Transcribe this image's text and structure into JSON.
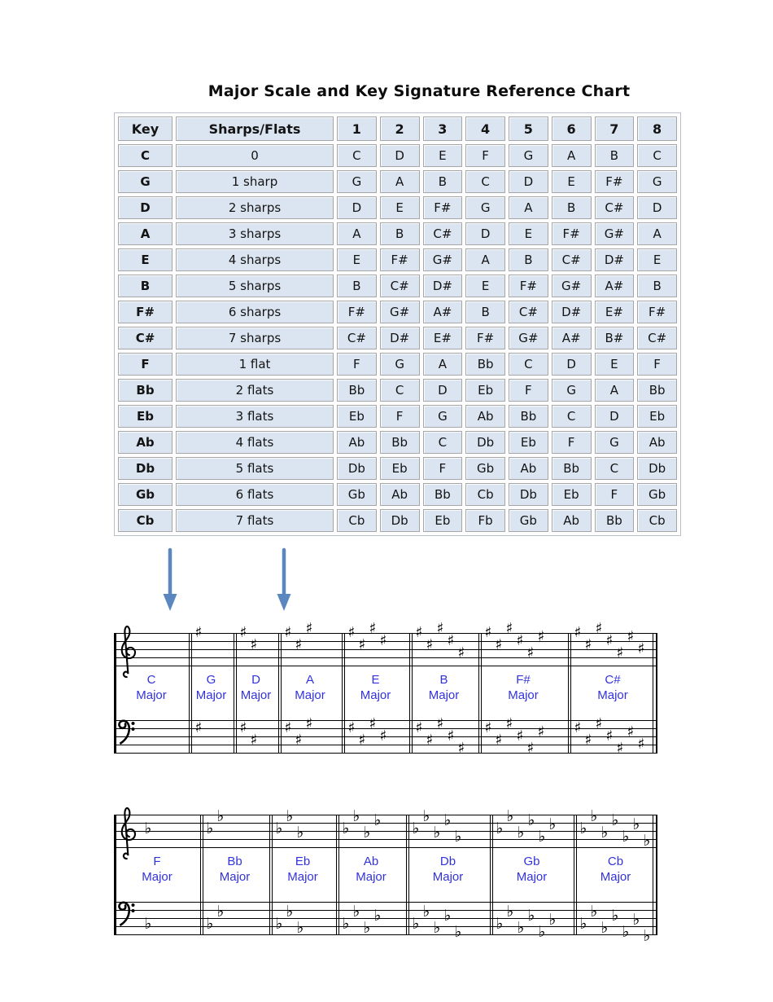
{
  "title": "Major Scale and Key Signature Reference Chart",
  "table": {
    "headers": [
      "Key",
      "Sharps/Flats",
      "1",
      "2",
      "3",
      "4",
      "5",
      "6",
      "7",
      "8"
    ],
    "rows": [
      {
        "key": "C",
        "signature": "0",
        "notes": [
          "C",
          "D",
          "E",
          "F",
          "G",
          "A",
          "B",
          "C"
        ]
      },
      {
        "key": "G",
        "signature": "1 sharp",
        "notes": [
          "G",
          "A",
          "B",
          "C",
          "D",
          "E",
          "F#",
          "G"
        ]
      },
      {
        "key": "D",
        "signature": "2 sharps",
        "notes": [
          "D",
          "E",
          "F#",
          "G",
          "A",
          "B",
          "C#",
          "D"
        ]
      },
      {
        "key": "A",
        "signature": "3 sharps",
        "notes": [
          "A",
          "B",
          "C#",
          "D",
          "E",
          "F#",
          "G#",
          "A"
        ]
      },
      {
        "key": "E",
        "signature": "4 sharps",
        "notes": [
          "E",
          "F#",
          "G#",
          "A",
          "B",
          "C#",
          "D#",
          "E"
        ]
      },
      {
        "key": "B",
        "signature": "5 sharps",
        "notes": [
          "B",
          "C#",
          "D#",
          "E",
          "F#",
          "G#",
          "A#",
          "B"
        ]
      },
      {
        "key": "F#",
        "signature": "6 sharps",
        "notes": [
          "F#",
          "G#",
          "A#",
          "B",
          "C#",
          "D#",
          "E#",
          "F#"
        ]
      },
      {
        "key": "C#",
        "signature": "7 sharps",
        "notes": [
          "C#",
          "D#",
          "E#",
          "F#",
          "G#",
          "A#",
          "B#",
          "C#"
        ]
      },
      {
        "key": "F",
        "signature": "1 flat",
        "notes": [
          "F",
          "G",
          "A",
          "Bb",
          "C",
          "D",
          "E",
          "F"
        ]
      },
      {
        "key": "Bb",
        "signature": "2 flats",
        "notes": [
          "Bb",
          "C",
          "D",
          "Eb",
          "F",
          "G",
          "A",
          "Bb"
        ]
      },
      {
        "key": "Eb",
        "signature": "3 flats",
        "notes": [
          "Eb",
          "F",
          "G",
          "Ab",
          "Bb",
          "C",
          "D",
          "Eb"
        ]
      },
      {
        "key": "Ab",
        "signature": "4 flats",
        "notes": [
          "Ab",
          "Bb",
          "C",
          "Db",
          "Eb",
          "F",
          "G",
          "Ab"
        ]
      },
      {
        "key": "Db",
        "signature": "5 flats",
        "notes": [
          "Db",
          "Eb",
          "F",
          "Gb",
          "Ab",
          "Bb",
          "C",
          "Db"
        ]
      },
      {
        "key": "Gb",
        "signature": "6 flats",
        "notes": [
          "Gb",
          "Ab",
          "Bb",
          "Cb",
          "Db",
          "Eb",
          "F",
          "Gb"
        ]
      },
      {
        "key": "Cb",
        "signature": "7 flats",
        "notes": [
          "Cb",
          "Db",
          "Eb",
          "Fb",
          "Gb",
          "Ab",
          "Bb",
          "Cb"
        ]
      }
    ]
  },
  "arrows": {
    "count": 2,
    "icon": "down-arrow-icon"
  },
  "notation": {
    "major_label": "Major",
    "sharp_glyph": "♯",
    "flat_glyph": "♭",
    "systems": [
      {
        "type": "sharps",
        "keys": [
          {
            "name": "C",
            "accidentals": 0
          },
          {
            "name": "G",
            "accidentals": 1
          },
          {
            "name": "D",
            "accidentals": 2
          },
          {
            "name": "A",
            "accidentals": 3
          },
          {
            "name": "E",
            "accidentals": 4
          },
          {
            "name": "B",
            "accidentals": 5
          },
          {
            "name": "F#",
            "accidentals": 6
          },
          {
            "name": "C#",
            "accidentals": 7
          }
        ]
      },
      {
        "type": "flats",
        "keys": [
          {
            "name": "F",
            "accidentals": 1
          },
          {
            "name": "Bb",
            "accidentals": 2
          },
          {
            "name": "Eb",
            "accidentals": 3
          },
          {
            "name": "Ab",
            "accidentals": 4
          },
          {
            "name": "Db",
            "accidentals": 5
          },
          {
            "name": "Gb",
            "accidentals": 6
          },
          {
            "name": "Cb",
            "accidentals": 7
          }
        ]
      }
    ]
  },
  "colors": {
    "cell_fill": "#dbe5f1",
    "cell_border": "#a6a6a6",
    "table_outline": "#b9c0cc",
    "label_blue": "#3232dd",
    "arrow_blue": "#5b87c1",
    "text": "#0d0d0d"
  }
}
